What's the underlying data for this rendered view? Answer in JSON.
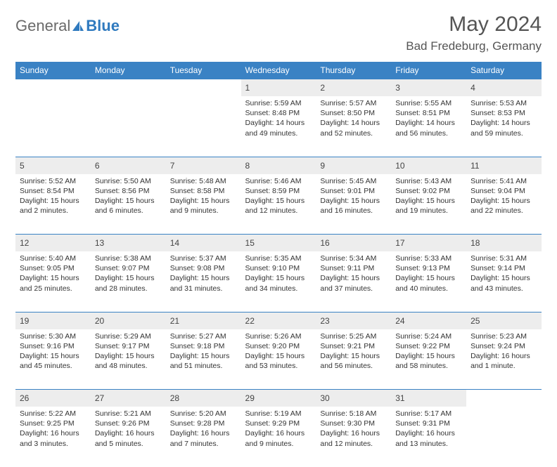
{
  "logo": {
    "text1": "General",
    "text2": "Blue"
  },
  "title": "May 2024",
  "location": "Bad Fredeburg, Germany",
  "weekdays": [
    "Sunday",
    "Monday",
    "Tuesday",
    "Wednesday",
    "Thursday",
    "Friday",
    "Saturday"
  ],
  "colors": {
    "header_bg": "#3a82c4",
    "header_text": "#ffffff",
    "daynum_bg": "#ededed",
    "border": "#3a82c4",
    "logo_gray": "#6a6a6a",
    "logo_blue": "#2f7abf"
  },
  "weeks": [
    [
      null,
      null,
      null,
      {
        "n": "1",
        "sr": "5:59 AM",
        "ss": "8:48 PM",
        "dl": "14 hours and 49 minutes."
      },
      {
        "n": "2",
        "sr": "5:57 AM",
        "ss": "8:50 PM",
        "dl": "14 hours and 52 minutes."
      },
      {
        "n": "3",
        "sr": "5:55 AM",
        "ss": "8:51 PM",
        "dl": "14 hours and 56 minutes."
      },
      {
        "n": "4",
        "sr": "5:53 AM",
        "ss": "8:53 PM",
        "dl": "14 hours and 59 minutes."
      }
    ],
    [
      {
        "n": "5",
        "sr": "5:52 AM",
        "ss": "8:54 PM",
        "dl": "15 hours and 2 minutes."
      },
      {
        "n": "6",
        "sr": "5:50 AM",
        "ss": "8:56 PM",
        "dl": "15 hours and 6 minutes."
      },
      {
        "n": "7",
        "sr": "5:48 AM",
        "ss": "8:58 PM",
        "dl": "15 hours and 9 minutes."
      },
      {
        "n": "8",
        "sr": "5:46 AM",
        "ss": "8:59 PM",
        "dl": "15 hours and 12 minutes."
      },
      {
        "n": "9",
        "sr": "5:45 AM",
        "ss": "9:01 PM",
        "dl": "15 hours and 16 minutes."
      },
      {
        "n": "10",
        "sr": "5:43 AM",
        "ss": "9:02 PM",
        "dl": "15 hours and 19 minutes."
      },
      {
        "n": "11",
        "sr": "5:41 AM",
        "ss": "9:04 PM",
        "dl": "15 hours and 22 minutes."
      }
    ],
    [
      {
        "n": "12",
        "sr": "5:40 AM",
        "ss": "9:05 PM",
        "dl": "15 hours and 25 minutes."
      },
      {
        "n": "13",
        "sr": "5:38 AM",
        "ss": "9:07 PM",
        "dl": "15 hours and 28 minutes."
      },
      {
        "n": "14",
        "sr": "5:37 AM",
        "ss": "9:08 PM",
        "dl": "15 hours and 31 minutes."
      },
      {
        "n": "15",
        "sr": "5:35 AM",
        "ss": "9:10 PM",
        "dl": "15 hours and 34 minutes."
      },
      {
        "n": "16",
        "sr": "5:34 AM",
        "ss": "9:11 PM",
        "dl": "15 hours and 37 minutes."
      },
      {
        "n": "17",
        "sr": "5:33 AM",
        "ss": "9:13 PM",
        "dl": "15 hours and 40 minutes."
      },
      {
        "n": "18",
        "sr": "5:31 AM",
        "ss": "9:14 PM",
        "dl": "15 hours and 43 minutes."
      }
    ],
    [
      {
        "n": "19",
        "sr": "5:30 AM",
        "ss": "9:16 PM",
        "dl": "15 hours and 45 minutes."
      },
      {
        "n": "20",
        "sr": "5:29 AM",
        "ss": "9:17 PM",
        "dl": "15 hours and 48 minutes."
      },
      {
        "n": "21",
        "sr": "5:27 AM",
        "ss": "9:18 PM",
        "dl": "15 hours and 51 minutes."
      },
      {
        "n": "22",
        "sr": "5:26 AM",
        "ss": "9:20 PM",
        "dl": "15 hours and 53 minutes."
      },
      {
        "n": "23",
        "sr": "5:25 AM",
        "ss": "9:21 PM",
        "dl": "15 hours and 56 minutes."
      },
      {
        "n": "24",
        "sr": "5:24 AM",
        "ss": "9:22 PM",
        "dl": "15 hours and 58 minutes."
      },
      {
        "n": "25",
        "sr": "5:23 AM",
        "ss": "9:24 PM",
        "dl": "16 hours and 1 minute."
      }
    ],
    [
      {
        "n": "26",
        "sr": "5:22 AM",
        "ss": "9:25 PM",
        "dl": "16 hours and 3 minutes."
      },
      {
        "n": "27",
        "sr": "5:21 AM",
        "ss": "9:26 PM",
        "dl": "16 hours and 5 minutes."
      },
      {
        "n": "28",
        "sr": "5:20 AM",
        "ss": "9:28 PM",
        "dl": "16 hours and 7 minutes."
      },
      {
        "n": "29",
        "sr": "5:19 AM",
        "ss": "9:29 PM",
        "dl": "16 hours and 9 minutes."
      },
      {
        "n": "30",
        "sr": "5:18 AM",
        "ss": "9:30 PM",
        "dl": "16 hours and 12 minutes."
      },
      {
        "n": "31",
        "sr": "5:17 AM",
        "ss": "9:31 PM",
        "dl": "16 hours and 13 minutes."
      },
      null
    ]
  ],
  "labels": {
    "sunrise": "Sunrise: ",
    "sunset": "Sunset: ",
    "daylight": "Daylight: "
  }
}
